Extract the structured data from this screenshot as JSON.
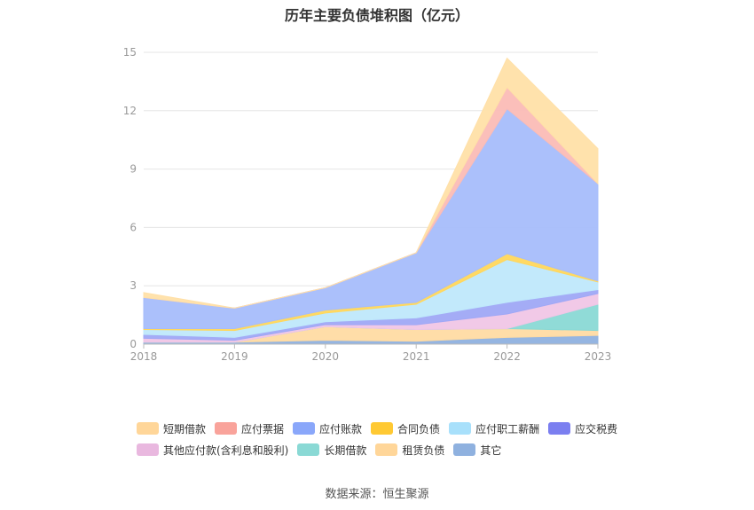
{
  "title": "历年主要负债堆积图（亿元）",
  "source": "数据来源：恒生聚源",
  "chart_data": {
    "type": "area",
    "stacked": true,
    "x": [
      "2018",
      "2019",
      "2020",
      "2021",
      "2022",
      "2023"
    ],
    "ylim": [
      0,
      15
    ],
    "yticks": [
      0,
      3,
      6,
      9,
      12,
      15
    ],
    "grid": true,
    "legend_position": "bottom",
    "series": [
      {
        "name": "其它",
        "color": "#8fb1df",
        "values": [
          0.1,
          0.1,
          0.2,
          0.15,
          0.35,
          0.45
        ]
      },
      {
        "name": "租赁负债",
        "color": "#ffdba3",
        "values": [
          0,
          0,
          0.7,
          0.6,
          0.45,
          0.25
        ]
      },
      {
        "name": "长期借款",
        "color": "#8ad9d5",
        "values": [
          0,
          0,
          0,
          0,
          0,
          1.35
        ]
      },
      {
        "name": "其他应付款(含利息和股利)",
        "color": "#f0c6e6",
        "values": [
          0.2,
          0.1,
          0.1,
          0.25,
          0.75,
          0.55
        ]
      },
      {
        "name": "应交税费",
        "color": "#9fa8f6",
        "values": [
          0.2,
          0.15,
          0.15,
          0.35,
          0.6,
          0.2
        ]
      },
      {
        "name": "应付职工薪酬",
        "color": "#bfe8fb",
        "values": [
          0.25,
          0.35,
          0.45,
          0.7,
          2.2,
          0.4
        ]
      },
      {
        "name": "合同负债",
        "color": "#ffd75c",
        "values": [
          0.05,
          0.1,
          0.15,
          0.1,
          0.3,
          0.05
        ]
      },
      {
        "name": "应付账款",
        "color": "#a6bdfb",
        "values": [
          1.6,
          1.05,
          1.15,
          2.55,
          7.45,
          5.0
        ]
      },
      {
        "name": "应付票据",
        "color": "#fbbcb6",
        "values": [
          0,
          0,
          0,
          0,
          1.1,
          0
        ]
      },
      {
        "name": "短期借款",
        "color": "#ffe0a8",
        "values": [
          0.25,
          0,
          0,
          0,
          1.5,
          1.8
        ]
      }
    ]
  },
  "legend": {
    "rows": [
      [
        {
          "label": "短期借款",
          "color": "#ffd699"
        },
        {
          "label": "应付票据",
          "color": "#f9a39b"
        },
        {
          "label": "应付账款",
          "color": "#8aa7fa"
        },
        {
          "label": "合同负债",
          "color": "#ffc933"
        },
        {
          "label": "应付职工薪酬",
          "color": "#a8e0fb"
        },
        {
          "label": "应交税费",
          "color": "#7b7ff0"
        }
      ],
      [
        {
          "label": "其他应付款(含利息和股利)",
          "color": "#e9b8df"
        },
        {
          "label": "长期借款",
          "color": "#8ad9d5"
        },
        {
          "label": "租赁负债",
          "color": "#ffd699"
        },
        {
          "label": "其它",
          "color": "#8fb1df"
        }
      ]
    ]
  }
}
